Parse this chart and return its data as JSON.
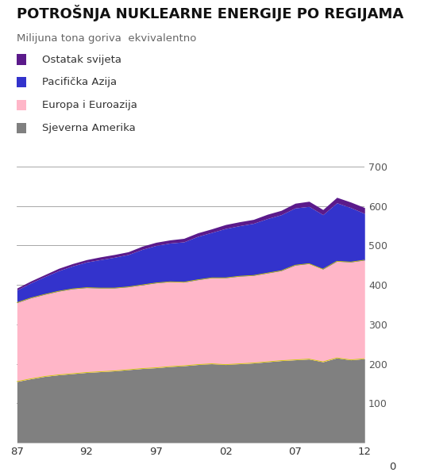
{
  "title": "POTROŠNJA NUKLEARNE ENERGIJE PO REGIJAMA",
  "subtitle": "Milijuna tona goriva  ekvivalentno",
  "years": [
    1987,
    1988,
    1989,
    1990,
    1991,
    1992,
    1993,
    1994,
    1995,
    1996,
    1997,
    1998,
    1999,
    2000,
    2001,
    2002,
    2003,
    2004,
    2005,
    2006,
    2007,
    2008,
    2009,
    2010,
    2011,
    2012
  ],
  "sjeverna_amerika": [
    155,
    162,
    168,
    172,
    175,
    178,
    180,
    182,
    185,
    188,
    190,
    193,
    195,
    198,
    200,
    198,
    200,
    202,
    205,
    208,
    210,
    212,
    205,
    215,
    210,
    213
  ],
  "europa_euroazija": [
    200,
    205,
    208,
    212,
    215,
    215,
    212,
    210,
    210,
    212,
    215,
    215,
    212,
    215,
    218,
    220,
    222,
    222,
    225,
    228,
    240,
    242,
    235,
    245,
    248,
    250
  ],
  "pacificka_azija": [
    32,
    38,
    45,
    52,
    58,
    65,
    72,
    78,
    82,
    90,
    95,
    98,
    102,
    110,
    115,
    125,
    128,
    132,
    138,
    142,
    145,
    145,
    138,
    148,
    138,
    118
  ],
  "ostatak_svijeta": [
    5,
    5,
    5,
    6,
    6,
    6,
    7,
    7,
    7,
    8,
    8,
    8,
    9,
    9,
    9,
    10,
    10,
    10,
    11,
    11,
    12,
    13,
    13,
    14,
    14,
    15
  ],
  "colors": {
    "sjeverna_amerika": "#808080",
    "europa_euroazija": "#ffb6c8",
    "pacificka_azija": "#3333cc",
    "ostatak_svijeta": "#5b1a8b"
  },
  "legend_labels": [
    "Ostatak svijeta",
    "Pacifička Azija",
    "Europa i Euroazija",
    "Sjeverna Amerika"
  ],
  "ylim": [
    0,
    700
  ],
  "yticks": [
    100,
    200,
    300,
    400,
    500,
    600,
    700
  ],
  "xticks": [
    1987,
    1992,
    1997,
    2002,
    2007,
    2012
  ],
  "xticklabels": [
    "87",
    "92",
    "97",
    "02",
    "07",
    "12"
  ],
  "background_color": "#ffffff",
  "title_fontsize": 13,
  "subtitle_fontsize": 9.5
}
